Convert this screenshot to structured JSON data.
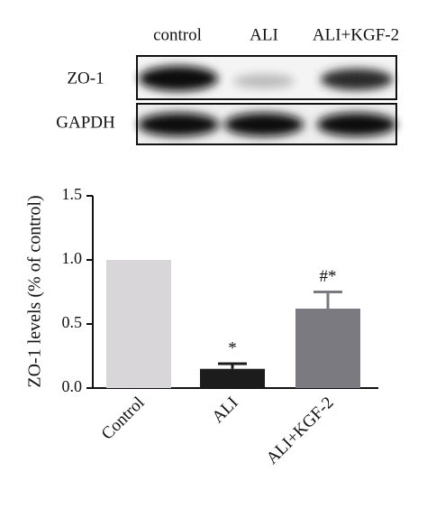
{
  "blot": {
    "lanes": [
      "control",
      "ALI",
      "ALI+KGF-2"
    ],
    "rows": [
      "ZO-1",
      "GAPDH"
    ]
  },
  "chart_data": {
    "type": "bar",
    "y_label": "ZO-1 levels (% of control)",
    "categories": [
      "Control",
      "ALI",
      "ALI+KGF-2"
    ],
    "values": [
      1.0,
      0.15,
      0.62
    ],
    "errors": [
      null,
      0.04,
      0.13
    ],
    "annotations": [
      null,
      "*",
      "#*"
    ],
    "colors": [
      "#d9d6d9",
      "#1c1c1c",
      "#7b7a80"
    ],
    "ylim": [
      0,
      1.5
    ],
    "yticks": [
      {
        "value": 0,
        "label": "0.0"
      },
      0.5,
      {
        "value": 1,
        "label": "1.0"
      },
      1.5
    ]
  }
}
